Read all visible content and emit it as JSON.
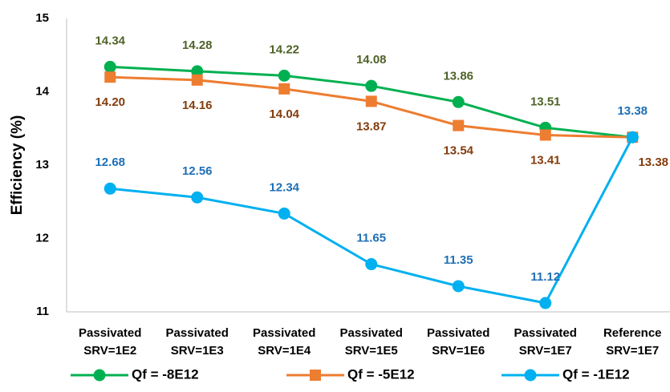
{
  "chart_data": {
    "type": "line",
    "y_label": "Efficiency (%)",
    "categories": [
      "Passivated\nSRV=1E2",
      "Passivated\nSRV=1E3",
      "Passivated\nSRV=1E4",
      "Passivated\nSRV=1E5",
      "Passivated\nSRV=1E6",
      "Passivated\nSRV=1E7",
      "Reference\nSRV=1E7"
    ],
    "series": [
      {
        "name": "Qf = -8E12",
        "color": "#00b050",
        "marker": "circle",
        "label_color": "#4f6228",
        "label_side": "above",
        "values": [
          14.34,
          14.28,
          14.22,
          14.08,
          13.86,
          13.51,
          13.38
        ],
        "value_labels": [
          "14.34",
          "14.28",
          "14.22",
          "14.08",
          "13.86",
          "13.51",
          null
        ]
      },
      {
        "name": "Qf = -5E12",
        "color": "#ed7d31",
        "marker": "square",
        "label_color": "#843c0c",
        "label_side": "below",
        "values": [
          14.2,
          14.16,
          14.04,
          13.87,
          13.54,
          13.41,
          13.38
        ],
        "value_labels": [
          "14.20",
          "14.16",
          "14.04",
          "13.87",
          "13.54",
          "13.41",
          "13.38"
        ]
      },
      {
        "name": "Qf = -1E12",
        "color": "#00b0f0",
        "marker": "circle",
        "label_color": "#1f6fb5",
        "label_side": "above",
        "values": [
          12.68,
          12.56,
          12.34,
          11.65,
          11.35,
          11.12,
          13.38
        ],
        "value_labels": [
          "12.68",
          "12.56",
          "12.34",
          "11.65",
          "11.35",
          "11.12",
          "13.38"
        ]
      }
    ],
    "ylim": [
      11,
      15
    ],
    "yticks": [
      11,
      12,
      13,
      14,
      15
    ],
    "grid": false,
    "legend": "bottom"
  }
}
